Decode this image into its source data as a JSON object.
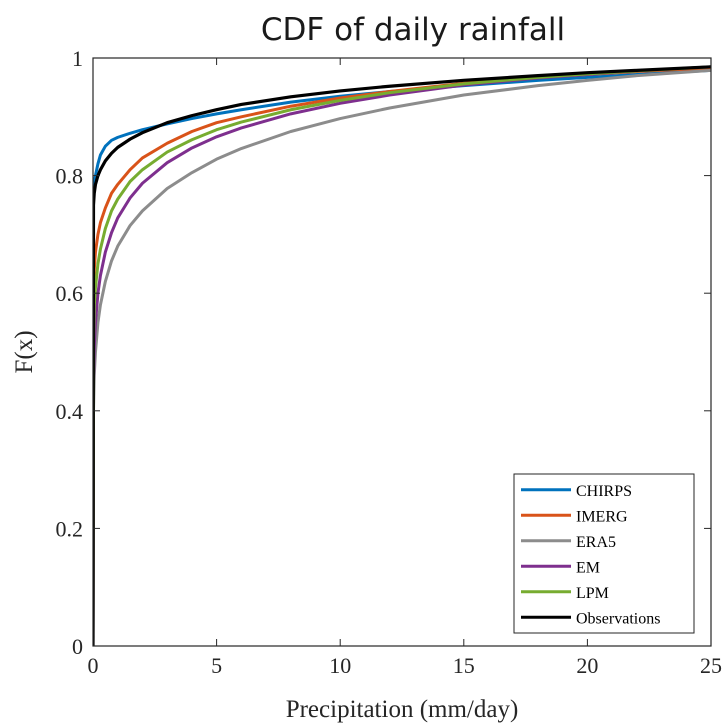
{
  "chart_data": {
    "type": "line",
    "title": "CDF of daily rainfall",
    "xlabel": "Precipitation (mm/day)",
    "ylabel": "F(x)",
    "xlim": [
      0,
      25
    ],
    "ylim": [
      0,
      1
    ],
    "xticks": [
      0,
      5,
      10,
      15,
      20,
      25
    ],
    "yticks": [
      0,
      0.2,
      0.4,
      0.6,
      0.8,
      1
    ],
    "ytick_labels": [
      "0",
      "0.2",
      "0.4",
      "0.6",
      "0.8",
      "1"
    ],
    "grid": false,
    "legend_position": "bottom-right",
    "series": [
      {
        "name": "CHIRPS",
        "color": "#0072BD",
        "x": [
          0,
          0.02,
          0.05,
          0.1,
          0.2,
          0.3,
          0.5,
          0.75,
          1,
          1.5,
          2,
          3,
          4,
          5,
          6,
          8,
          10,
          12,
          15,
          18,
          20,
          22,
          25
        ],
        "y": [
          0,
          0.76,
          0.79,
          0.8,
          0.82,
          0.835,
          0.85,
          0.86,
          0.865,
          0.872,
          0.878,
          0.888,
          0.897,
          0.905,
          0.912,
          0.925,
          0.935,
          0.943,
          0.953,
          0.962,
          0.967,
          0.972,
          0.979
        ]
      },
      {
        "name": "IMERG",
        "color": "#D95319",
        "x": [
          0,
          0.02,
          0.05,
          0.1,
          0.2,
          0.3,
          0.5,
          0.75,
          1,
          1.5,
          2,
          3,
          4,
          5,
          6,
          8,
          10,
          12,
          15,
          18,
          20,
          22,
          25
        ],
        "y": [
          0,
          0.6,
          0.64,
          0.67,
          0.7,
          0.72,
          0.745,
          0.77,
          0.785,
          0.81,
          0.83,
          0.855,
          0.875,
          0.89,
          0.9,
          0.918,
          0.932,
          0.943,
          0.957,
          0.967,
          0.972,
          0.977,
          0.983
        ]
      },
      {
        "name": "ERA5",
        "color": "#8C8C8C",
        "x": [
          0,
          0.02,
          0.05,
          0.1,
          0.2,
          0.3,
          0.5,
          0.75,
          1,
          1.5,
          2,
          3,
          4,
          5,
          6,
          8,
          10,
          12,
          15,
          18,
          20,
          22,
          25
        ],
        "y": [
          0,
          0.4,
          0.46,
          0.5,
          0.55,
          0.58,
          0.62,
          0.655,
          0.68,
          0.715,
          0.74,
          0.778,
          0.805,
          0.828,
          0.846,
          0.875,
          0.897,
          0.915,
          0.937,
          0.953,
          0.962,
          0.97,
          0.979
        ]
      },
      {
        "name": "EM",
        "color": "#7E2F8E",
        "x": [
          0,
          0.02,
          0.05,
          0.1,
          0.2,
          0.3,
          0.5,
          0.75,
          1,
          1.5,
          2,
          3,
          4,
          5,
          6,
          8,
          10,
          12,
          15,
          18,
          20,
          22,
          25
        ],
        "y": [
          0,
          0.45,
          0.51,
          0.55,
          0.6,
          0.63,
          0.67,
          0.703,
          0.728,
          0.762,
          0.787,
          0.822,
          0.847,
          0.866,
          0.881,
          0.905,
          0.923,
          0.937,
          0.954,
          0.966,
          0.972,
          0.978,
          0.985
        ]
      },
      {
        "name": "LPM",
        "color": "#77AC30",
        "x": [
          0,
          0.02,
          0.05,
          0.1,
          0.2,
          0.3,
          0.5,
          0.75,
          1,
          1.5,
          2,
          3,
          4,
          5,
          6,
          8,
          10,
          12,
          15,
          18,
          20,
          22,
          25
        ],
        "y": [
          0,
          0.52,
          0.58,
          0.61,
          0.65,
          0.675,
          0.71,
          0.74,
          0.76,
          0.79,
          0.81,
          0.84,
          0.861,
          0.878,
          0.891,
          0.912,
          0.928,
          0.941,
          0.956,
          0.967,
          0.973,
          0.978,
          0.985
        ]
      },
      {
        "name": "Observations",
        "color": "#000000",
        "x": [
          0,
          0.02,
          0.05,
          0.1,
          0.2,
          0.3,
          0.5,
          0.75,
          1,
          1.5,
          2,
          3,
          4,
          5,
          6,
          8,
          10,
          12,
          15,
          18,
          20,
          22,
          25
        ],
        "y": [
          0,
          0.75,
          0.77,
          0.785,
          0.8,
          0.81,
          0.825,
          0.838,
          0.848,
          0.862,
          0.873,
          0.89,
          0.902,
          0.912,
          0.921,
          0.934,
          0.944,
          0.952,
          0.962,
          0.97,
          0.975,
          0.979,
          0.985
        ]
      }
    ]
  }
}
